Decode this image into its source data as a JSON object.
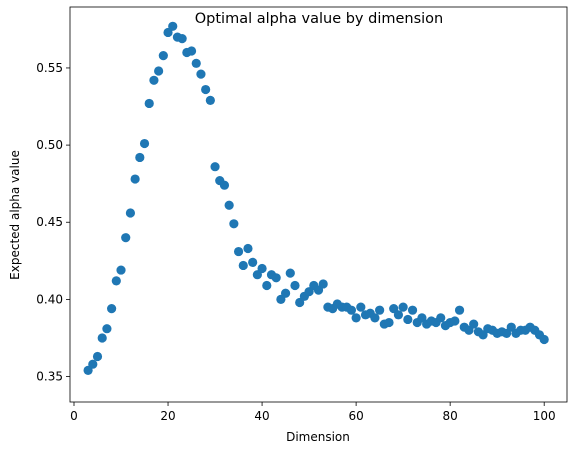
{
  "chart_data": {
    "type": "scatter",
    "title": "Optimal alpha value by dimension",
    "xlabel": "Dimension",
    "ylabel": "Expected alpha value",
    "xlim": [
      -0.85,
      104.85
    ],
    "ylim": [
      0.3335,
      0.5895
    ],
    "x_ticks": [
      0,
      20,
      40,
      60,
      80,
      100
    ],
    "x_tick_labels": [
      "0",
      "20",
      "40",
      "60",
      "80",
      "100"
    ],
    "y_ticks": [
      0.35,
      0.4,
      0.45,
      0.5,
      0.55
    ],
    "y_tick_labels": [
      "0.35",
      "0.40",
      "0.45",
      "0.50",
      "0.55"
    ],
    "grid": false,
    "marker_color": "#1f77b4",
    "x": [
      3,
      4,
      5,
      6,
      7,
      8,
      9,
      10,
      11,
      12,
      13,
      14,
      15,
      16,
      17,
      18,
      19,
      20,
      21,
      22,
      23,
      24,
      25,
      26,
      27,
      28,
      29,
      30,
      31,
      32,
      33,
      34,
      35,
      36,
      37,
      38,
      39,
      40,
      41,
      42,
      43,
      44,
      45,
      46,
      47,
      48,
      49,
      50,
      51,
      52,
      53,
      54,
      55,
      56,
      57,
      58,
      59,
      60,
      61,
      62,
      63,
      64,
      65,
      66,
      67,
      68,
      69,
      70,
      71,
      72,
      73,
      74,
      75,
      76,
      77,
      78,
      79,
      80,
      81,
      82,
      83,
      84,
      85,
      86,
      87,
      88,
      89,
      90,
      91,
      92,
      93,
      94,
      95,
      96,
      97,
      98,
      99,
      100
    ],
    "y": [
      0.354,
      0.358,
      0.363,
      0.375,
      0.381,
      0.394,
      0.412,
      0.419,
      0.44,
      0.456,
      0.478,
      0.492,
      0.501,
      0.527,
      0.542,
      0.548,
      0.558,
      0.573,
      0.577,
      0.57,
      0.569,
      0.56,
      0.561,
      0.553,
      0.546,
      0.536,
      0.529,
      0.486,
      0.477,
      0.474,
      0.461,
      0.449,
      0.431,
      0.422,
      0.433,
      0.424,
      0.416,
      0.42,
      0.409,
      0.416,
      0.414,
      0.4,
      0.404,
      0.417,
      0.409,
      0.398,
      0.402,
      0.405,
      0.409,
      0.406,
      0.41,
      0.395,
      0.394,
      0.397,
      0.395,
      0.395,
      0.393,
      0.388,
      0.395,
      0.39,
      0.391,
      0.388,
      0.393,
      0.384,
      0.385,
      0.394,
      0.39,
      0.395,
      0.387,
      0.393,
      0.385,
      0.388,
      0.384,
      0.386,
      0.385,
      0.388,
      0.383,
      0.385,
      0.386,
      0.393,
      0.382,
      0.38,
      0.384,
      0.379,
      0.377,
      0.381,
      0.38,
      0.378,
      0.379,
      0.378,
      0.382,
      0.378,
      0.38,
      0.38,
      0.382,
      0.38,
      0.377,
      0.374
    ]
  }
}
